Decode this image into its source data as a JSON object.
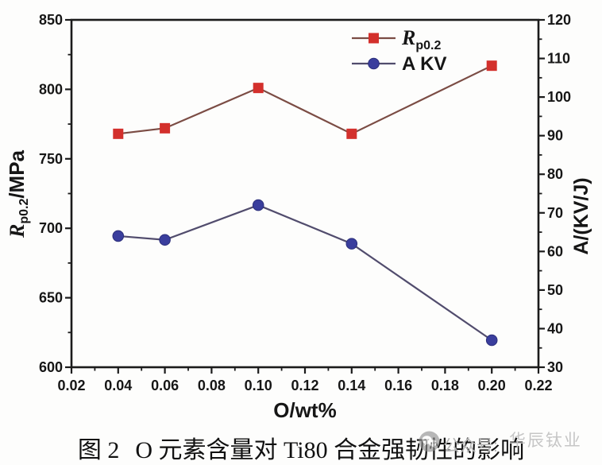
{
  "figure": {
    "caption_prefix": "图 2",
    "caption_title": "O 元素含量对 Ti80 合金强韧性的影响"
  },
  "watermark": {
    "icon": "wechat-chat-bubbles-icon",
    "label": "公众号:",
    "brand": "华辰钛业",
    "icon_color": "#8d8d8d",
    "label_color": "#b5b5b5",
    "brand_color": "#c6c6c6"
  },
  "chart_data": {
    "type": "line",
    "title": "",
    "xlabel": "O/wt%",
    "ylabel_left": {
      "italic": "R",
      "sub": "p0.2",
      "rest": "/MPa"
    },
    "ylabel_right": "A/(KV/J)",
    "xlim": [
      0.02,
      0.22
    ],
    "x_major_ticks": [
      0.02,
      0.04,
      0.06,
      0.08,
      0.1,
      0.12,
      0.14,
      0.16,
      0.18,
      0.2,
      0.22
    ],
    "ylim_left": [
      600,
      850
    ],
    "left_major_ticks": [
      600,
      650,
      700,
      750,
      800,
      850
    ],
    "ylim_right": [
      30,
      120
    ],
    "right_major_ticks": [
      30,
      40,
      50,
      60,
      70,
      80,
      90,
      100,
      110,
      120
    ],
    "grid": false,
    "legend_position": "top-center-inside",
    "x": [
      0.04,
      0.06,
      0.1,
      0.14,
      0.2
    ],
    "series": [
      {
        "name": "Rp0.2",
        "legend": {
          "italic": "R",
          "sub": "p0.2",
          "plain": ""
        },
        "axis": "left",
        "values": [
          768,
          772,
          801,
          768,
          817
        ],
        "marker": "square",
        "marker_color": "#d3302c",
        "line_color": "#7b4c44"
      },
      {
        "name": "AKV",
        "legend": {
          "italic": "",
          "sub": "",
          "plain": "A KV"
        },
        "axis": "right",
        "values": [
          64,
          63,
          72,
          62,
          37
        ],
        "marker": "circle",
        "marker_color": "#3a3e9d",
        "line_color": "#514c6d"
      }
    ],
    "colors": {
      "axis": "#1b1b1b",
      "tick_label": "#161616"
    }
  }
}
